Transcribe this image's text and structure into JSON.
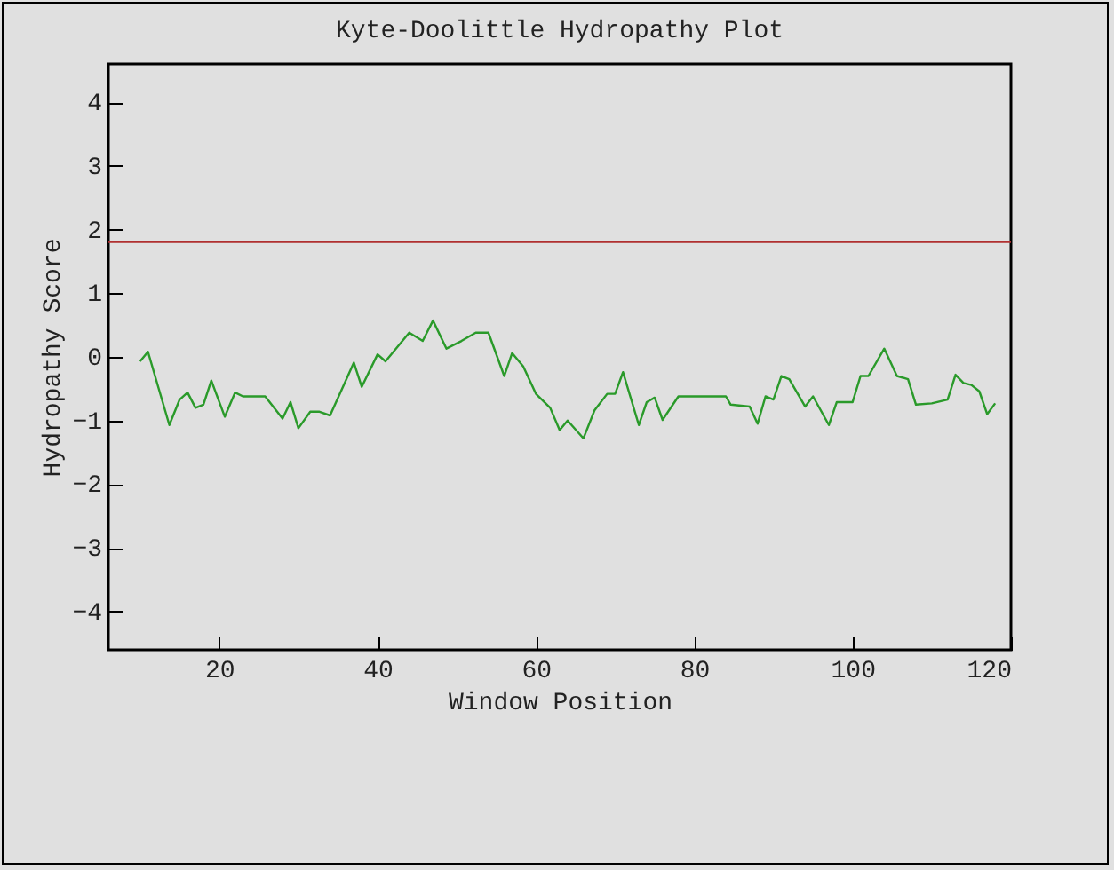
{
  "chart_data": {
    "type": "line",
    "title": "Kyte-Doolittle Hydropathy Plot",
    "xlabel": "Window Position",
    "ylabel": "Hydropathy Score",
    "xlim": [
      6,
      120
    ],
    "ylim": [
      -4.6,
      4.6
    ],
    "xticks": [
      20,
      40,
      60,
      80,
      100,
      120
    ],
    "yticks": [
      -4,
      -3,
      -2,
      -1,
      0,
      1,
      2,
      3,
      4
    ],
    "grid": false,
    "legend": false,
    "ref_lines": [
      {
        "axis": "y",
        "value": 1.8,
        "color": "#b03030"
      }
    ],
    "series": [
      {
        "color": "#2a9a2a",
        "x": [
          10,
          11,
          13.7,
          15,
          16,
          17,
          18,
          19,
          20.7,
          22,
          23,
          25.8,
          28,
          29,
          30,
          31.5,
          32.6,
          34,
          37,
          38,
          40,
          41,
          44,
          45.7,
          47,
          48.7,
          50.6,
          52.4,
          54,
          56,
          57,
          58.4,
          60,
          61.8,
          63,
          64,
          66,
          67.4,
          69,
          70,
          71,
          73,
          74,
          75,
          76,
          78,
          84,
          84.6,
          87,
          88,
          89,
          90,
          91,
          92,
          94,
          95,
          97,
          98,
          100,
          101,
          102,
          104,
          105.6,
          107,
          108,
          110,
          112,
          113,
          114,
          115,
          116,
          117,
          118
        ],
        "values": [
          -0.07,
          0.08,
          -1.07,
          -0.67,
          -0.56,
          -0.8,
          -0.75,
          -0.37,
          -0.94,
          -0.56,
          -0.62,
          -0.62,
          -0.97,
          -0.71,
          -1.12,
          -0.86,
          -0.86,
          -0.92,
          -0.09,
          -0.47,
          0.04,
          -0.07,
          0.38,
          0.25,
          0.57,
          0.13,
          0.25,
          0.38,
          0.38,
          -0.3,
          0.06,
          -0.15,
          -0.58,
          -0.8,
          -1.15,
          -1.0,
          -1.28,
          -0.84,
          -0.58,
          -0.58,
          -0.24,
          -1.07,
          -0.71,
          -0.64,
          -0.99,
          -0.62,
          -0.62,
          -0.75,
          -0.78,
          -1.05,
          -0.62,
          -0.67,
          -0.3,
          -0.35,
          -0.78,
          -0.62,
          -1.07,
          -0.71,
          -0.71,
          -0.3,
          -0.3,
          0.13,
          -0.3,
          -0.35,
          -0.75,
          -0.73,
          -0.67,
          -0.28,
          -0.41,
          -0.44,
          -0.54,
          -0.9,
          -0.73
        ]
      }
    ]
  }
}
